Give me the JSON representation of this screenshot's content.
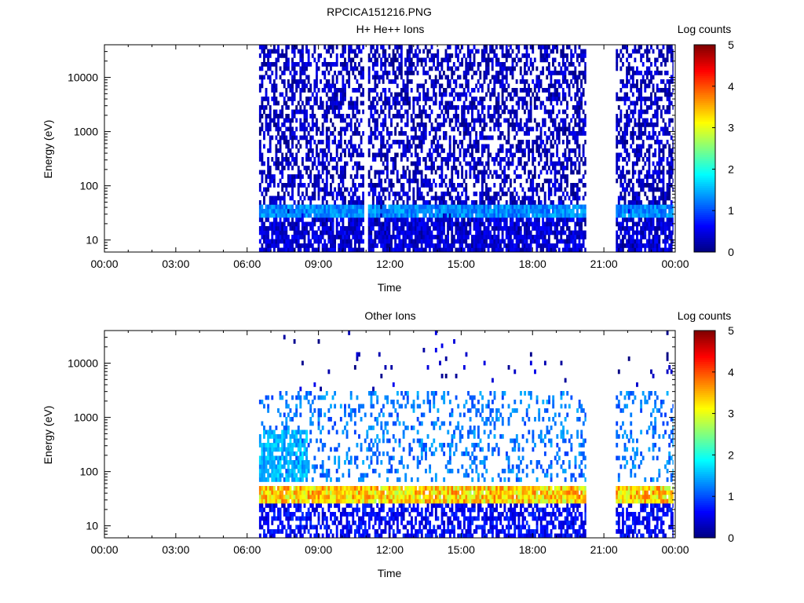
{
  "figure_title": "RPCICA151216.PNG",
  "colors": {
    "plot_background": "#ffffff",
    "axis": "#000000",
    "noise_blue": "#0b1fb0",
    "colormap": [
      "#00007f",
      "#0000ff",
      "#0080ff",
      "#00ffff",
      "#80ff80",
      "#ffff00",
      "#ff8000",
      "#ff0000",
      "#7f0000"
    ]
  },
  "chart_data": [
    {
      "type": "heatmap",
      "title": "H+ He++ Ions",
      "xlabel": "Time",
      "ylabel": "Energy (eV)",
      "x_scale": "time-of-day",
      "y_scale": "log",
      "xlim": [
        "00:00",
        "24:00"
      ],
      "ylim": [
        6,
        40000
      ],
      "xticks": [
        "00:00",
        "03:00",
        "06:00",
        "09:00",
        "12:00",
        "15:00",
        "18:00",
        "21:00",
        "00:00"
      ],
      "yticks": [
        {
          "value": 10,
          "label": "10"
        },
        {
          "value": 100,
          "label": "100"
        },
        {
          "value": 1000,
          "label": "1000"
        },
        {
          "value": 10000,
          "label": "10000"
        }
      ],
      "colorbar": {
        "label": "Log counts",
        "min": 0,
        "max": 5,
        "ticks": [
          "0",
          "1",
          "2",
          "3",
          "4",
          "5"
        ]
      },
      "data_intervals": [
        {
          "start": "06:30",
          "end": "10:55"
        },
        {
          "start": "11:05",
          "end": "20:15"
        },
        {
          "start": "21:30",
          "end": "23:55"
        }
      ],
      "data_gaps": [
        {
          "start": "00:00",
          "end": "06:30"
        },
        {
          "start": "10:55",
          "end": "11:05"
        },
        {
          "start": "20:15",
          "end": "21:30"
        }
      ],
      "features": [
        {
          "description": "sparse low-count noise across all energies",
          "energy_range_ev": [
            6,
            40000
          ],
          "log_counts": 0.3
        },
        {
          "description": "enhanced band",
          "energy_range_ev": [
            28,
            45
          ],
          "log_counts": 1.3
        },
        {
          "description": "dense noise band below band",
          "energy_range_ev": [
            6,
            25
          ],
          "log_counts": 0.4
        }
      ]
    },
    {
      "type": "heatmap",
      "title": "Other Ions",
      "xlabel": "Time",
      "ylabel": "Energy (eV)",
      "x_scale": "time-of-day",
      "y_scale": "log",
      "xlim": [
        "00:00",
        "24:00"
      ],
      "ylim": [
        6,
        40000
      ],
      "xticks": [
        "00:00",
        "03:00",
        "06:00",
        "09:00",
        "12:00",
        "15:00",
        "18:00",
        "21:00",
        "00:00"
      ],
      "yticks": [
        {
          "value": 10,
          "label": "10"
        },
        {
          "value": 100,
          "label": "100"
        },
        {
          "value": 1000,
          "label": "1000"
        },
        {
          "value": 10000,
          "label": "10000"
        }
      ],
      "colorbar": {
        "label": "Log counts",
        "min": 0,
        "max": 5,
        "ticks": [
          "0",
          "1",
          "2",
          "3",
          "4",
          "5"
        ]
      },
      "data_intervals": [
        {
          "start": "06:30",
          "end": "20:15"
        },
        {
          "start": "21:30",
          "end": "23:55"
        }
      ],
      "data_gaps": [
        {
          "start": "00:00",
          "end": "06:30"
        },
        {
          "start": "20:15",
          "end": "21:30"
        }
      ],
      "features": [
        {
          "description": "main band",
          "energy_range_ev": [
            28,
            55
          ],
          "log_counts": 3.3
        },
        {
          "description": "enhanced activity up to",
          "energy_range_ev": [
            60,
            600
          ],
          "log_counts": 1.5,
          "time_range": [
            "06:30",
            "08:30"
          ]
        },
        {
          "description": "scattered spikes",
          "energy_range_ev": [
            60,
            3000
          ],
          "log_counts": 1.2
        },
        {
          "description": "sparse high-energy noise",
          "energy_range_ev": [
            3000,
            40000
          ],
          "log_counts": 0.3
        },
        {
          "description": "low energy band",
          "energy_range_ev": [
            6,
            25
          ],
          "log_counts": 0.6
        }
      ]
    }
  ]
}
